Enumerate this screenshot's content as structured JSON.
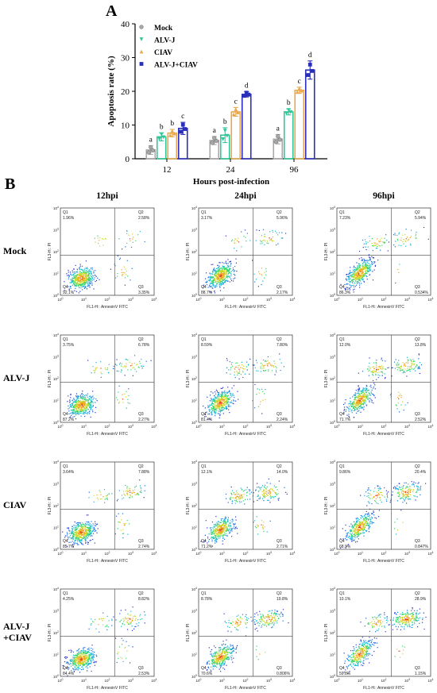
{
  "panel_a_letter": "A",
  "panel_b_letter": "B",
  "chart_data": {
    "type": "bar",
    "categories": [
      "12",
      "24",
      "96"
    ],
    "xlabel": "Hours post-infection",
    "ylabel": "Apoptosis rate (%)",
    "ylim": [
      0,
      40
    ],
    "yticks": [
      "0",
      "10",
      "20",
      "30",
      "40"
    ],
    "legend_position": "top-left",
    "series": [
      {
        "name": "Mock",
        "color": "#a8a8a8",
        "marker": "circle",
        "values": [
          2.6,
          5.4,
          5.8
        ],
        "errors": [
          1.3,
          1.2,
          1.4
        ],
        "labels": [
          "a",
          "a",
          "a"
        ]
      },
      {
        "name": "ALV-J",
        "color": "#2fc69a",
        "marker": "triangle-down",
        "values": [
          6.5,
          7.0,
          13.9
        ],
        "errors": [
          1.2,
          2.2,
          0.9
        ],
        "labels": [
          "b",
          "b",
          "b"
        ]
      },
      {
        "name": "CIAV",
        "color": "#e8a94f",
        "marker": "triangle-up",
        "values": [
          7.6,
          13.9,
          20.3
        ],
        "errors": [
          1.1,
          1.3,
          0.9
        ],
        "labels": [
          "b",
          "c",
          "c"
        ]
      },
      {
        "name": "ALV-J+CIAV",
        "color": "#2a2fb8",
        "marker": "square",
        "values": [
          9.0,
          19.1,
          26.3
        ],
        "errors": [
          1.8,
          0.8,
          2.7
        ],
        "labels": [
          "c",
          "d",
          "d"
        ]
      }
    ]
  },
  "flow": {
    "columns": [
      "12hpi",
      "24hpi",
      "96hpi"
    ],
    "rows": [
      "Mock",
      "ALV-J",
      "CIAV",
      "ALV-J\n+CIAV"
    ],
    "row_lines": [
      [
        "Mock"
      ],
      [
        "ALV-J"
      ],
      [
        "CIAV"
      ],
      [
        "ALV-J",
        "+CIAV"
      ]
    ],
    "x_axis_label": "FL1-H:: AnnexinV FITC",
    "y_axis_label": "FL3-H:: PI",
    "tick_labels": [
      "10^0",
      "10^1",
      "10^2",
      "10^3",
      "10^4"
    ],
    "quadrant_names": [
      "Q1",
      "Q2",
      "Q3",
      "Q4"
    ],
    "plots": [
      [
        {
          "Q1": "1.96%",
          "Q2": "2.58%",
          "Q3": "3.35%",
          "Q4": "92.1%"
        },
        {
          "Q1": "3.17%",
          "Q2": "5.96%",
          "Q3": "2.17%",
          "Q4": "88.7%"
        },
        {
          "Q1": "7.23%",
          "Q2": "5.94%",
          "Q3": "0.534%",
          "Q4": "86.3%"
        }
      ],
      [
        {
          "Q1": "3.75%",
          "Q2": "6.78%",
          "Q3": "2.27%",
          "Q4": "87.2%"
        },
        {
          "Q1": "8.59%",
          "Q2": "7.80%",
          "Q3": "2.24%",
          "Q4": "81.4%"
        },
        {
          "Q1": "12.0%",
          "Q2": "13.8%",
          "Q3": "2.52%",
          "Q4": "71.7%"
        }
      ],
      [
        {
          "Q1": "3.64%",
          "Q2": "7.88%",
          "Q3": "2.74%",
          "Q4": "85.7%"
        },
        {
          "Q1": "12.1%",
          "Q2": "14.0%",
          "Q3": "2.71%",
          "Q4": "71.2%"
        },
        {
          "Q1": "9.86%",
          "Q2": "20.4%",
          "Q3": "0.847%",
          "Q4": "68.9%"
        }
      ],
      [
        {
          "Q1": "4.25%",
          "Q2": "8.82%",
          "Q3": "2.53%",
          "Q4": "84.4%"
        },
        {
          "Q1": "8.78%",
          "Q2": "19.8%",
          "Q3": "0.806%",
          "Q4": "70.6%"
        },
        {
          "Q1": "10.1%",
          "Q2": "28.9%",
          "Q3": "1.15%",
          "Q4": "59.8%"
        }
      ]
    ]
  }
}
